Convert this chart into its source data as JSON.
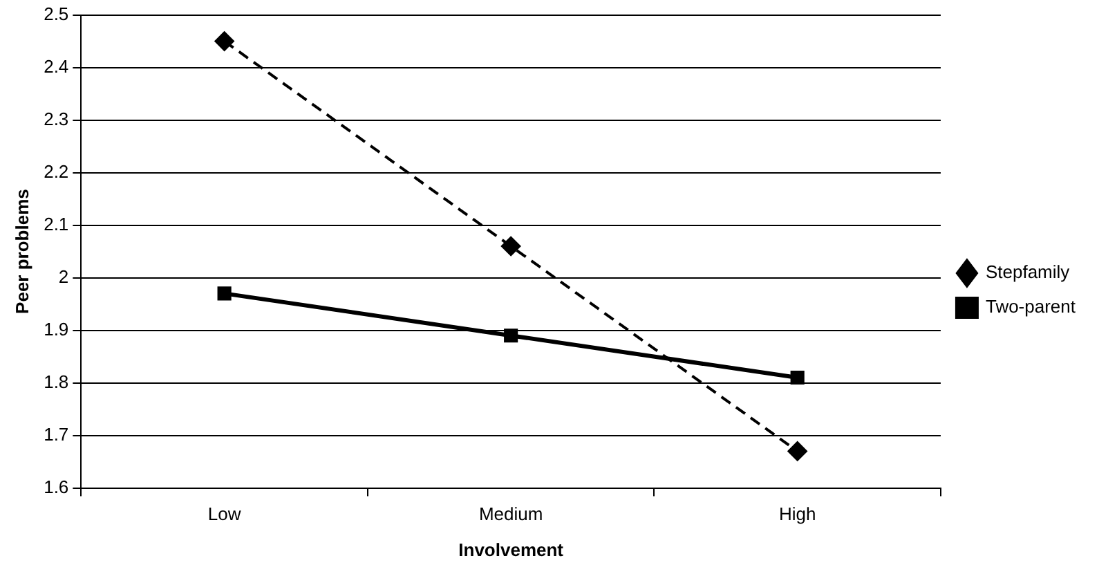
{
  "chart_data": {
    "type": "line",
    "xlabel": "Involvement",
    "ylabel": "Peer problems",
    "categories": [
      "Low",
      "Medium",
      "High"
    ],
    "series": [
      {
        "name": "Stepfamily",
        "color": "#000000",
        "values": [
          2.45,
          2.06,
          1.67
        ],
        "marker": "diamond",
        "line_style": "dashed"
      },
      {
        "name": "Two-parent",
        "color": "#000000",
        "values": [
          1.97,
          1.89,
          1.81
        ],
        "marker": "square",
        "line_style": "solid"
      }
    ],
    "ylim": [
      1.6,
      2.5
    ],
    "yticks": [
      1.6,
      1.7,
      1.8,
      1.9,
      2,
      2.1,
      2.2,
      2.3,
      2.4,
      2.5
    ],
    "grid": "y",
    "legend": "right"
  }
}
